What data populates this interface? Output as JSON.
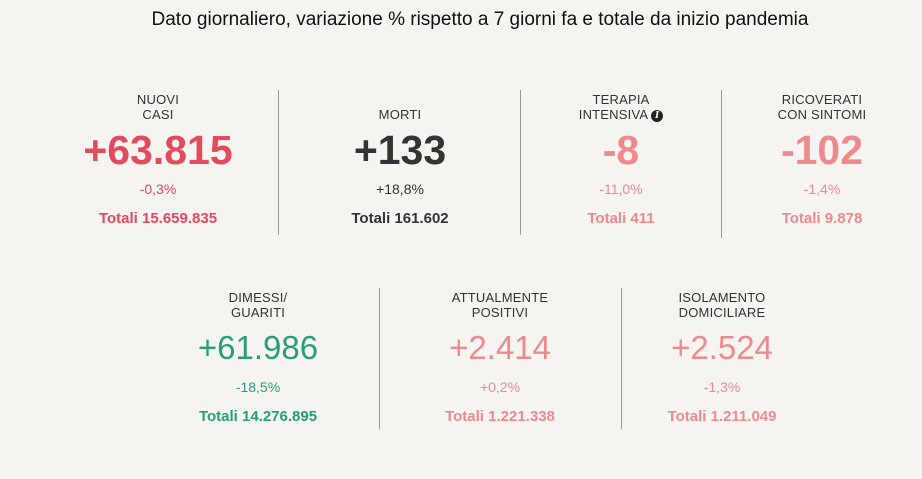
{
  "header": {
    "title": "Dato giornaliero, variazione % rispetto a 7 giorni fa e totale da inizio pandemia"
  },
  "row1": [
    {
      "label_1": "NUOVI",
      "label_2": "CASI",
      "value": "+63.815",
      "pct": "-0,3%",
      "total": "Totali 15.659.835",
      "color": "#e24a5e"
    },
    {
      "label_1": "",
      "label_2": "MORTI",
      "value": "+133",
      "pct": "+18,8%",
      "total": "Totali 161.602",
      "color": "#333333"
    },
    {
      "label_1": "TERAPIA",
      "label_2": "INTENSIVA",
      "info_icon": "info-icon",
      "value": "-8",
      "pct": "-11,0%",
      "total": "Totali 411",
      "color": "#ee8a8e"
    },
    {
      "label_1": "RICOVERATI",
      "label_2": "CON SINTOMI",
      "value": "-102",
      "pct": "-1,4%",
      "total": "Totali 9.878",
      "color": "#ee8a8e"
    }
  ],
  "row2": [
    {
      "label_1": "DIMESSI/",
      "label_2": "GUARITI",
      "value": "+61.986",
      "pct": "-18,5%",
      "total": "Totali 14.276.895",
      "color": "#27a07a"
    },
    {
      "label_1": "ATTUALMENTE",
      "label_2": "POSITIVI",
      "value": "+2.414",
      "pct": "+0,2%",
      "total": "Totali 1.221.338",
      "color": "#ee8a8e"
    },
    {
      "label_1": "ISOLAMENTO",
      "label_2": "DOMICILIARE",
      "value": "+2.524",
      "pct": "-1,3%",
      "total": "Totali 1.211.049",
      "color": "#ee8a8e"
    }
  ]
}
